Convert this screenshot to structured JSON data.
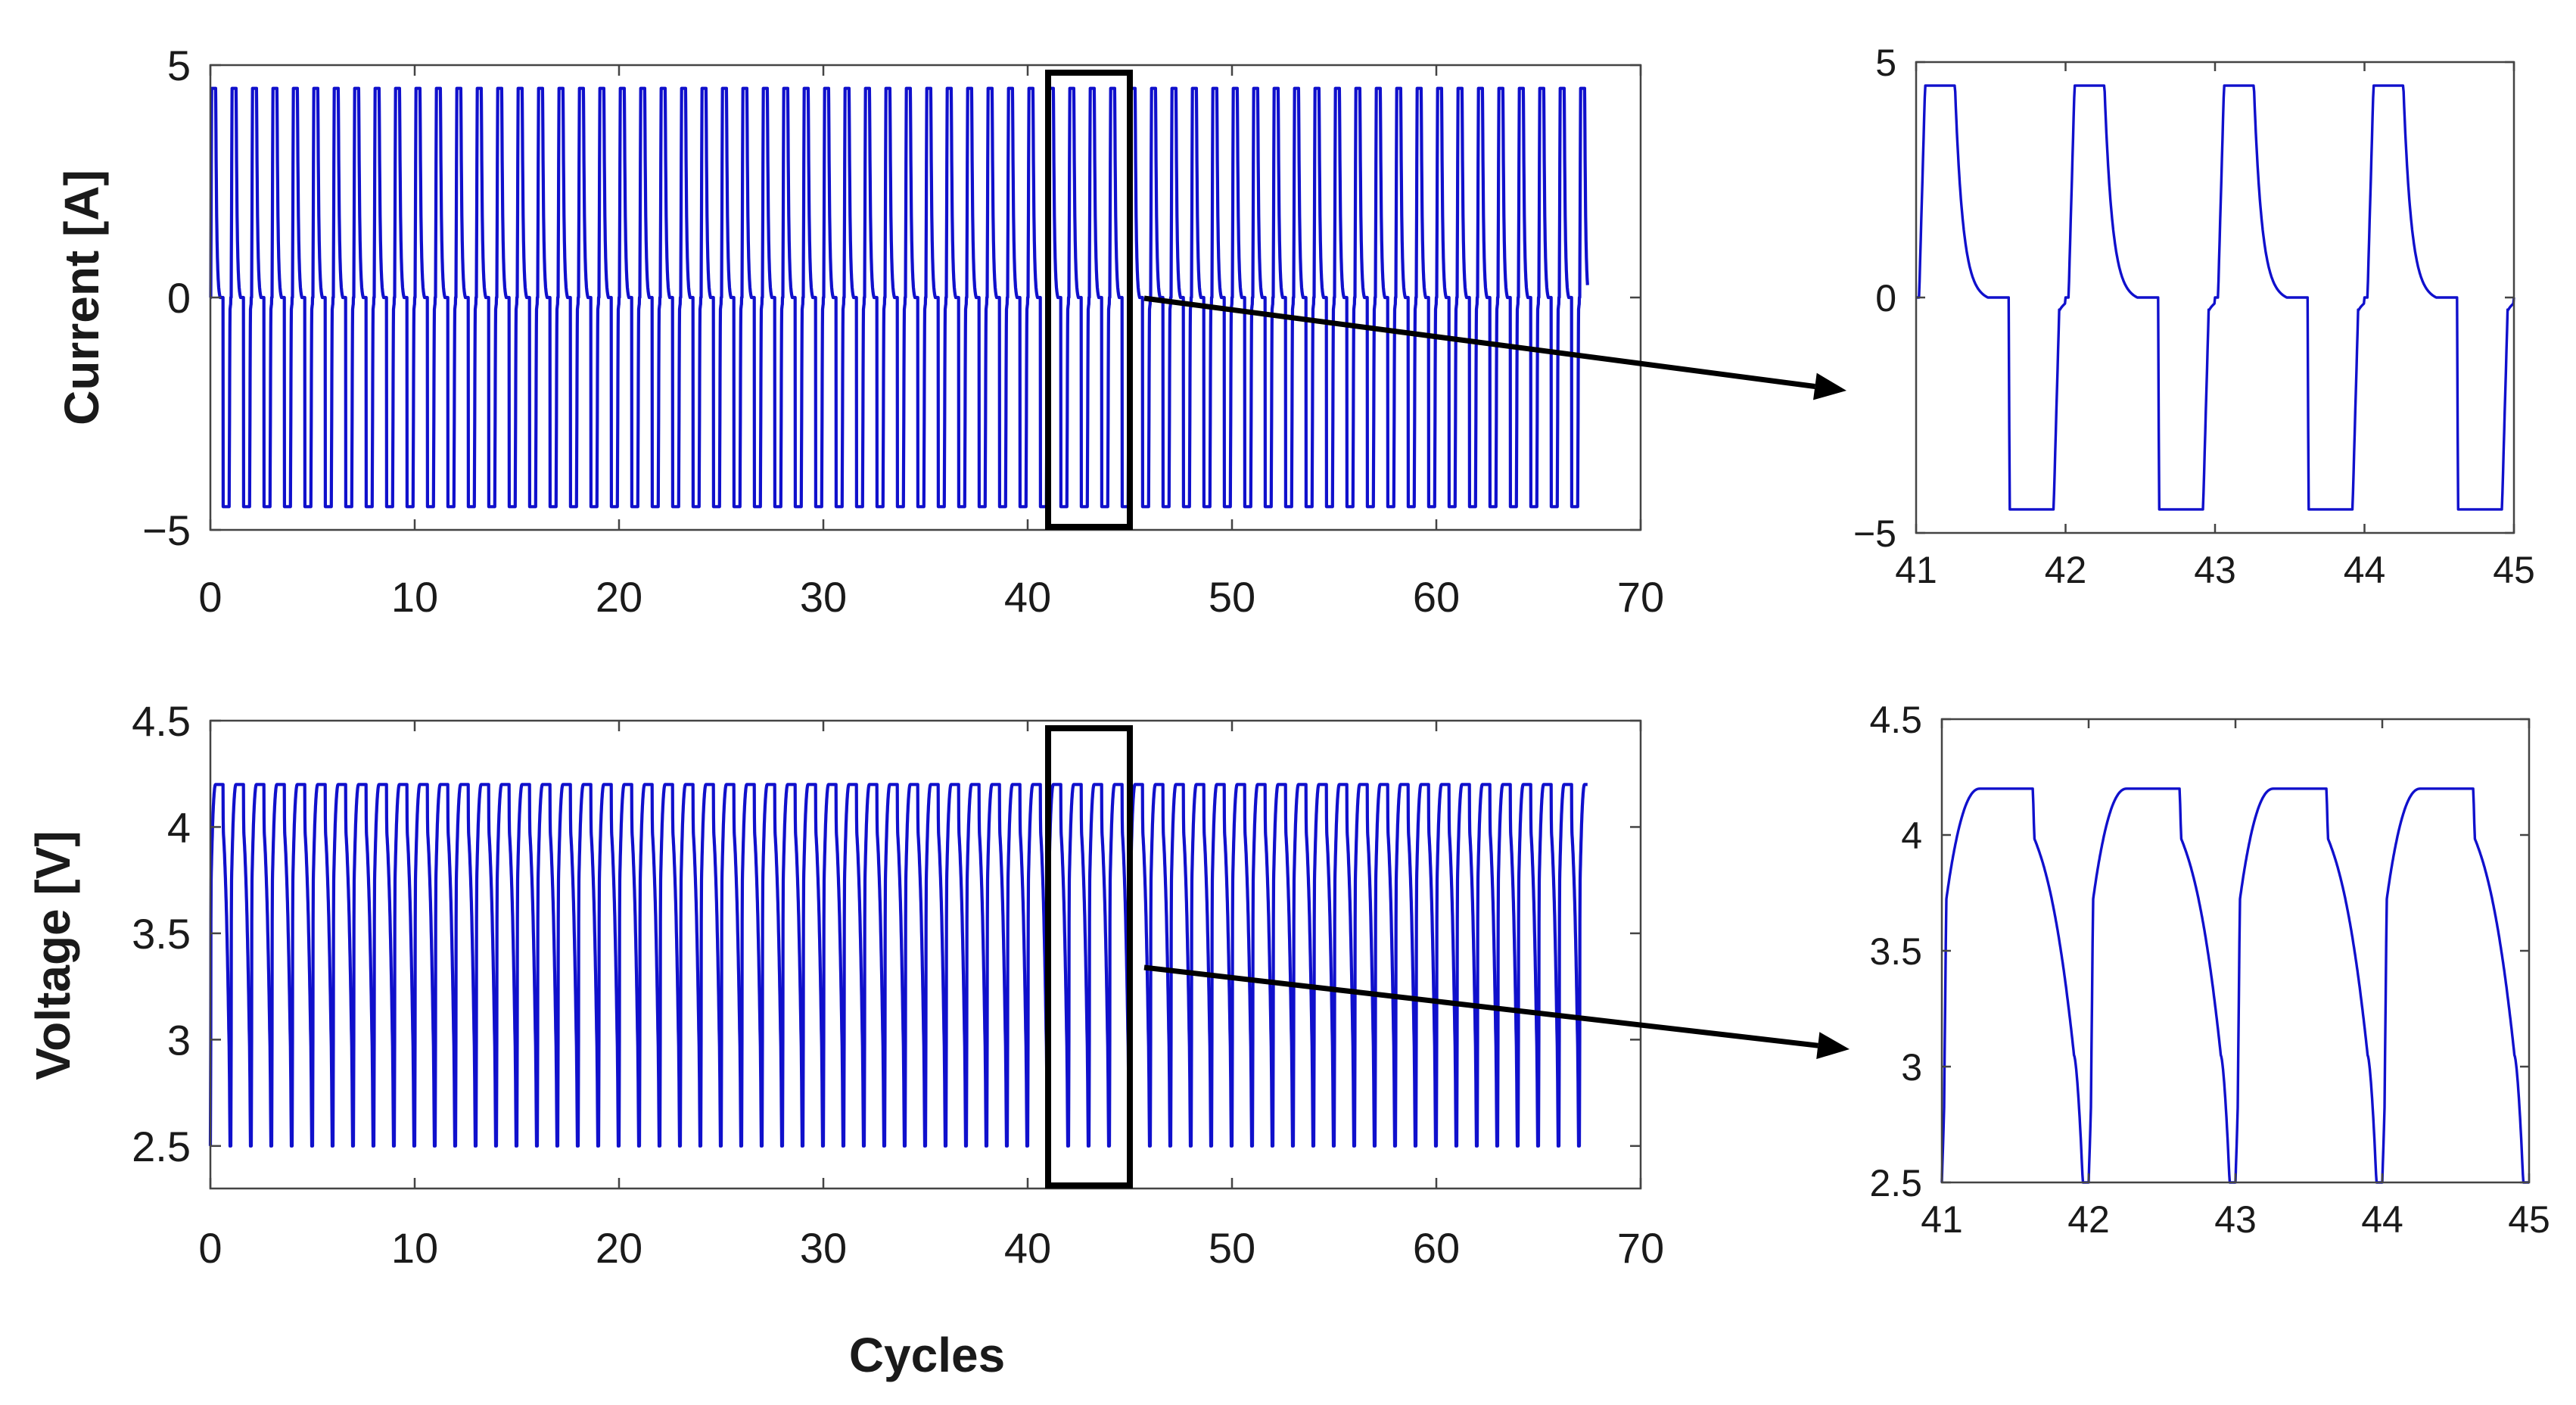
{
  "colors": {
    "series": "#1010cc",
    "arrow": "#000000"
  },
  "figure_xlabel": "Cycles",
  "chart_data": [
    {
      "id": "current_overview",
      "type": "line",
      "ylabel": "Current [A]",
      "xlim": [
        0,
        70
      ],
      "ylim": [
        -5,
        5
      ],
      "xticks": [
        0,
        10,
        20,
        30,
        40,
        50,
        60,
        70
      ],
      "xtick_labels": [
        "0",
        "10",
        "20",
        "30",
        "40",
        "50",
        "60",
        "70"
      ],
      "yticks": [
        -5,
        0,
        5
      ],
      "ytick_labels": [
        "−5",
        "0",
        "5"
      ],
      "series": [
        {
          "name": "Current",
          "waveform": "current",
          "x_start": 0,
          "x_end": 67.4,
          "cycle_length": 1,
          "max": 4.5,
          "min": -4.5
        }
      ],
      "zoom_box": {
        "x": [
          41,
          45
        ]
      }
    },
    {
      "id": "voltage_overview",
      "type": "line",
      "ylabel": "Voltage [V]",
      "xlim": [
        0,
        70
      ],
      "ylim": [
        2.3,
        4.5
      ],
      "xticks": [
        0,
        10,
        20,
        30,
        40,
        50,
        60,
        70
      ],
      "xtick_labels": [
        "0",
        "10",
        "20",
        "30",
        "40",
        "50",
        "60",
        "70"
      ],
      "yticks": [
        2.5,
        3,
        3.5,
        4,
        4.5
      ],
      "ytick_labels": [
        "2.5",
        "3",
        "3.5",
        "4",
        "4.5"
      ],
      "series": [
        {
          "name": "Voltage",
          "waveform": "voltage",
          "x_start": 0,
          "x_end": 67.4,
          "cycle_length": 1,
          "max": 4.2,
          "min": 2.5
        }
      ],
      "zoom_box": {
        "x": [
          41,
          45
        ]
      }
    },
    {
      "id": "current_zoom",
      "type": "line",
      "xlim": [
        41,
        45
      ],
      "ylim": [
        -5,
        5
      ],
      "xticks": [
        41,
        42,
        43,
        44,
        45
      ],
      "xtick_labels": [
        "41",
        "42",
        "43",
        "44",
        "45"
      ],
      "yticks": [
        -5,
        0,
        5
      ],
      "ytick_labels": [
        "−5",
        "0",
        "5"
      ],
      "series": [
        {
          "name": "Current",
          "waveform": "current",
          "x_start": 41,
          "x_end": 45,
          "cycle_length": 1,
          "cc_charge": [
            0.06,
            0.26
          ],
          "rest": [
            0.48,
            0.62
          ],
          "cc_discharge": [
            0.62,
            0.92
          ],
          "max": 4.5,
          "min": -4.5
        }
      ]
    },
    {
      "id": "voltage_zoom",
      "type": "line",
      "xlim": [
        41,
        45
      ],
      "ylim": [
        2.5,
        4.5
      ],
      "xticks": [
        41,
        42,
        43,
        44,
        45
      ],
      "xtick_labels": [
        "41",
        "42",
        "43",
        "44",
        "45"
      ],
      "yticks": [
        2.5,
        3,
        3.5,
        4,
        4.5
      ],
      "ytick_labels": [
        "2.5",
        "3",
        "3.5",
        "4",
        "4.5"
      ],
      "series": [
        {
          "name": "Voltage",
          "waveform": "voltage",
          "x_start": 41,
          "x_end": 45,
          "cycle_length": 1,
          "cv_hold": [
            0.26,
            0.62
          ],
          "max": 4.2,
          "min": 2.5
        }
      ]
    }
  ]
}
